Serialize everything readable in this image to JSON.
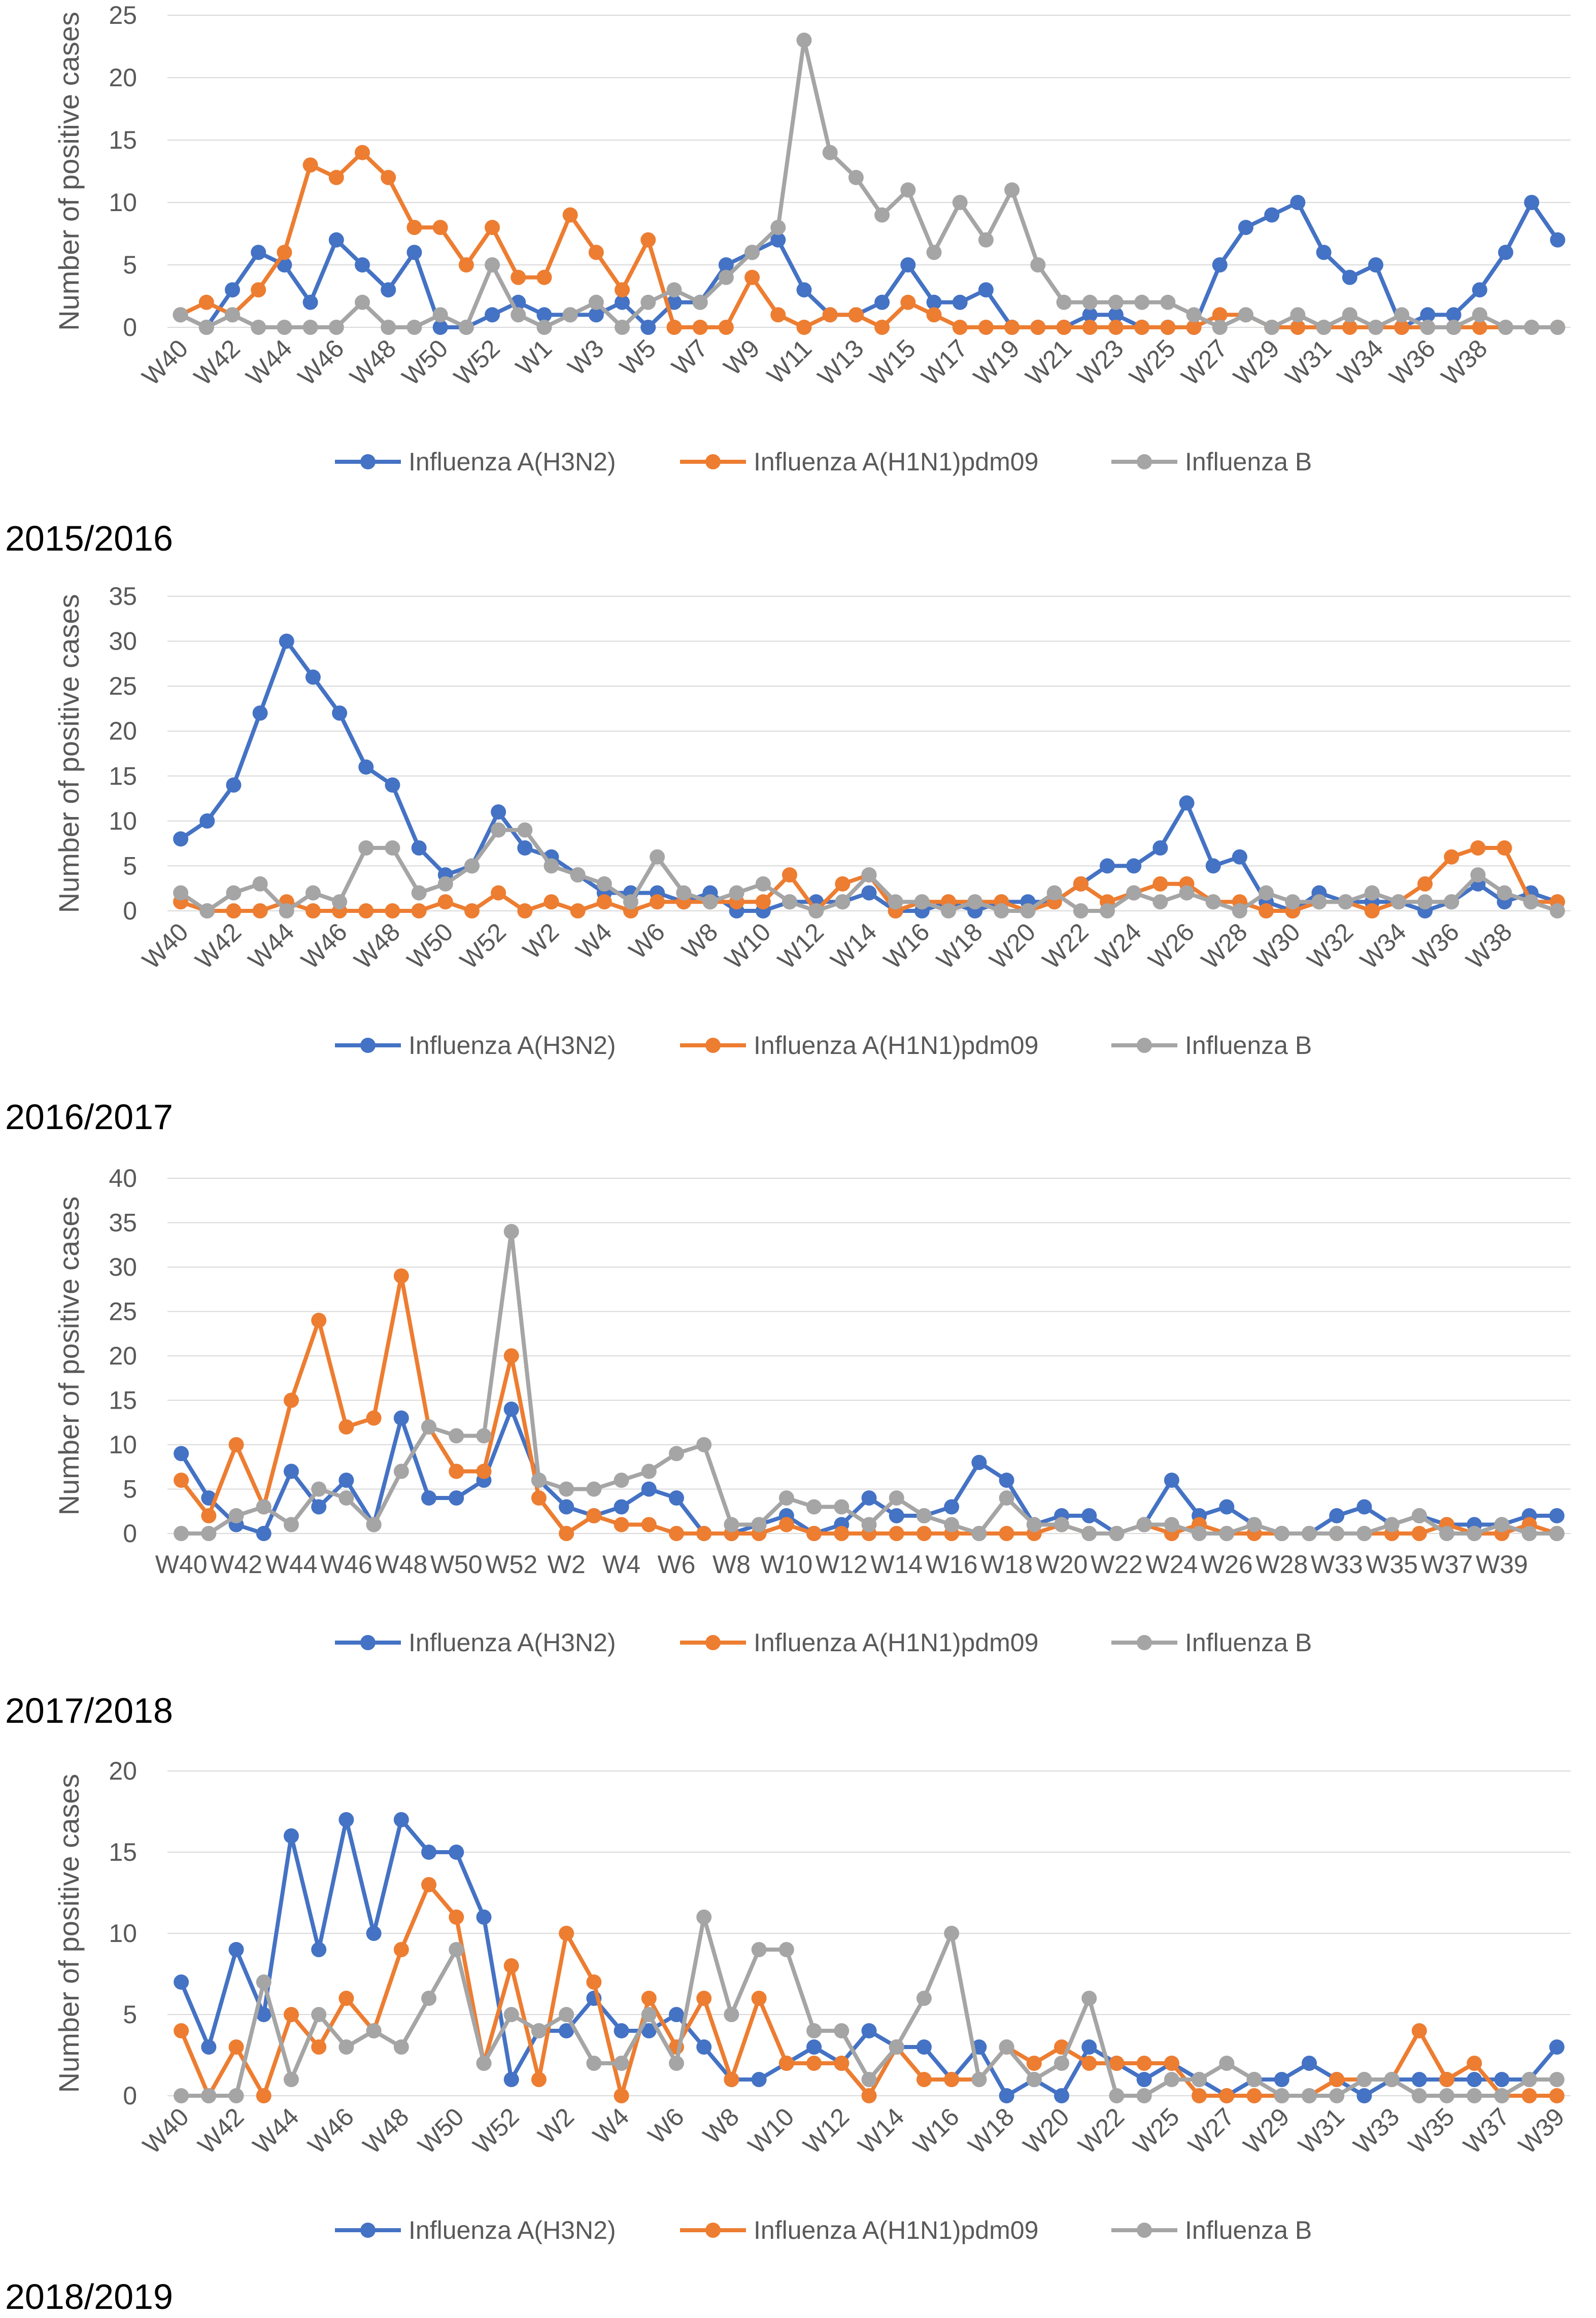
{
  "colors": {
    "h3n2": "#4472C4",
    "h1n1": "#ED7D31",
    "b": "#A5A5A5",
    "grid": "#D9D9D9",
    "text": "#595959"
  },
  "chart_data": [
    {
      "type": "line",
      "title": "",
      "ylabel": "Number of positive cases",
      "ylim": [
        0,
        25
      ],
      "ystep": 5,
      "grid": true,
      "legend": "bottom",
      "x_tick_labels": [
        "W40",
        "W42",
        "W44",
        "W46",
        "W48",
        "W50",
        "W52",
        "W1",
        "W3",
        "W5",
        "W7",
        "W9",
        "W11",
        "W13",
        "W15",
        "W17",
        "W19",
        "W21",
        "W23",
        "W25",
        "W27",
        "W29",
        "W31",
        "W34",
        "W36",
        "W38"
      ],
      "label_angle": 45,
      "series": [
        {
          "name": "Influenza A(H3N2)",
          "values": [
            1,
            0,
            3,
            6,
            5,
            2,
            7,
            5,
            3,
            6,
            0,
            0,
            1,
            2,
            1,
            1,
            1,
            2,
            0,
            2,
            2,
            5,
            6,
            7,
            3,
            1,
            1,
            2,
            5,
            2,
            2,
            3,
            0,
            0,
            0,
            1,
            1,
            0,
            0,
            0,
            5,
            8,
            9,
            10,
            6,
            4,
            5,
            0,
            1,
            1,
            3,
            6,
            10,
            7
          ]
        },
        {
          "name": "Influenza A(H1N1)pdm09",
          "values": [
            1,
            2,
            1,
            3,
            6,
            13,
            12,
            14,
            12,
            8,
            8,
            5,
            8,
            4,
            4,
            9,
            6,
            3,
            7,
            0,
            0,
            0,
            4,
            1,
            0,
            1,
            1,
            0,
            2,
            1,
            0,
            0,
            0,
            0,
            0,
            0,
            0,
            0,
            0,
            0,
            1,
            1,
            0,
            0,
            0,
            0,
            0,
            0,
            0,
            0,
            0,
            0,
            0,
            0
          ]
        },
        {
          "name": "Influenza B",
          "values": [
            1,
            0,
            1,
            0,
            0,
            0,
            0,
            2,
            0,
            0,
            1,
            0,
            5,
            1,
            0,
            1,
            2,
            0,
            2,
            3,
            2,
            4,
            6,
            8,
            23,
            14,
            12,
            9,
            11,
            6,
            10,
            7,
            11,
            5,
            2,
            2,
            2,
            2,
            2,
            1,
            0,
            1,
            0,
            1,
            0,
            1,
            0,
            1,
            0,
            0,
            1,
            0,
            0,
            0
          ]
        }
      ]
    },
    {
      "type": "line",
      "title": "2015/2016",
      "ylabel": "Number of positive cases",
      "ylim": [
        0,
        35
      ],
      "ystep": 5,
      "grid": true,
      "legend": "bottom",
      "x_tick_labels": [
        "W40",
        "W42",
        "W44",
        "W46",
        "W48",
        "W50",
        "W52",
        "W2",
        "W4",
        "W6",
        "W8",
        "W10",
        "W12",
        "W14",
        "W16",
        "W18",
        "W20",
        "W22",
        "W24",
        "W26",
        "W28",
        "W30",
        "W32",
        "W34",
        "W36",
        "W38"
      ],
      "label_angle": 45,
      "series": [
        {
          "name": "Influenza A(H3N2)",
          "values": [
            8,
            10,
            14,
            22,
            30,
            26,
            22,
            16,
            14,
            7,
            4,
            5,
            11,
            7,
            6,
            4,
            2,
            2,
            2,
            1,
            2,
            0,
            0,
            1,
            1,
            1,
            2,
            0,
            0,
            1,
            0,
            1,
            1,
            1,
            3,
            5,
            5,
            7,
            12,
            5,
            6,
            1,
            0,
            2,
            1,
            1,
            1,
            0,
            1,
            3,
            1,
            2,
            1
          ]
        },
        {
          "name": "Influenza A(H1N1)pdm09",
          "values": [
            1,
            0,
            0,
            0,
            1,
            0,
            0,
            0,
            0,
            0,
            1,
            0,
            2,
            0,
            1,
            0,
            1,
            0,
            1,
            1,
            1,
            1,
            1,
            4,
            0,
            3,
            4,
            0,
            1,
            1,
            1,
            1,
            0,
            1,
            3,
            1,
            2,
            3,
            3,
            1,
            1,
            0,
            0,
            1,
            1,
            0,
            1,
            3,
            6,
            7,
            7,
            1,
            1
          ]
        },
        {
          "name": "Influenza B",
          "values": [
            2,
            0,
            2,
            3,
            0,
            2,
            1,
            7,
            7,
            2,
            3,
            5,
            9,
            9,
            5,
            4,
            3,
            1,
            6,
            2,
            1,
            2,
            3,
            1,
            0,
            1,
            4,
            1,
            1,
            0,
            1,
            0,
            0,
            2,
            0,
            0,
            2,
            1,
            2,
            1,
            0,
            2,
            1,
            1,
            1,
            2,
            1,
            1,
            1,
            4,
            2,
            1,
            0
          ]
        }
      ]
    },
    {
      "type": "line",
      "title": "2016/2017",
      "ylabel": "Number of positive cases",
      "ylim": [
        0,
        40
      ],
      "ystep": 5,
      "grid": true,
      "legend": "bottom",
      "x_tick_labels": [
        "W40",
        "W42",
        "W44",
        "W46",
        "W48",
        "W50",
        "W52",
        "W2",
        "W4",
        "W6",
        "W8",
        "W10",
        "W12",
        "W14",
        "W16",
        "W18",
        "W20",
        "W22",
        "W24",
        "W26",
        "W28",
        "W33",
        "W35",
        "W37",
        "W39"
      ],
      "label_angle": 0,
      "series": [
        {
          "name": "Influenza A(H3N2)",
          "values": [
            9,
            4,
            1,
            0,
            7,
            3,
            6,
            1,
            13,
            4,
            4,
            6,
            14,
            6,
            3,
            2,
            3,
            5,
            4,
            0,
            0,
            1,
            2,
            0,
            1,
            4,
            2,
            2,
            3,
            8,
            6,
            1,
            2,
            2,
            0,
            1,
            6,
            2,
            3,
            1,
            0,
            0,
            2,
            3,
            1,
            2,
            1,
            1,
            1,
            2,
            2
          ]
        },
        {
          "name": "Influenza A(H1N1)pdm09",
          "values": [
            6,
            2,
            10,
            3,
            15,
            24,
            12,
            13,
            29,
            12,
            7,
            7,
            20,
            4,
            0,
            2,
            1,
            1,
            0,
            0,
            0,
            0,
            1,
            0,
            0,
            0,
            0,
            0,
            0,
            0,
            0,
            0,
            1,
            0,
            0,
            1,
            0,
            1,
            0,
            0,
            0,
            0,
            0,
            0,
            0,
            0,
            1,
            0,
            0,
            1,
            0
          ]
        },
        {
          "name": "Influenza B",
          "values": [
            0,
            0,
            2,
            3,
            1,
            5,
            4,
            1,
            7,
            12,
            11,
            11,
            34,
            6,
            5,
            5,
            6,
            7,
            9,
            10,
            1,
            1,
            4,
            3,
            3,
            1,
            4,
            2,
            1,
            0,
            4,
            1,
            1,
            0,
            0,
            1,
            1,
            0,
            0,
            1,
            0,
            0,
            0,
            0,
            1,
            2,
            0,
            0,
            1,
            0,
            0
          ]
        }
      ]
    },
    {
      "type": "line",
      "title": "2017/2018",
      "ylabel": "Number of positive cases",
      "ylim": [
        0,
        20
      ],
      "ystep": 5,
      "grid": true,
      "legend": "bottom",
      "x_tick_labels": [
        "W40",
        "W42",
        "W44",
        "W46",
        "W48",
        "W50",
        "W52",
        "W2",
        "W4",
        "W6",
        "W8",
        "W10",
        "W12",
        "W14",
        "W16",
        "W18",
        "W20",
        "W22",
        "W25",
        "W27",
        "W29",
        "W31",
        "W33",
        "W35",
        "W37",
        "W39"
      ],
      "label_angle": 45,
      "series": [
        {
          "name": "Influenza A(H3N2)",
          "values": [
            7,
            3,
            9,
            5,
            16,
            9,
            17,
            10,
            17,
            15,
            15,
            11,
            1,
            4,
            4,
            6,
            4,
            4,
            5,
            3,
            1,
            1,
            2,
            3,
            2,
            4,
            3,
            3,
            1,
            3,
            0,
            1,
            0,
            3,
            2,
            1,
            2,
            1,
            0,
            1,
            1,
            2,
            1,
            0,
            1,
            1,
            1,
            1,
            1,
            1,
            3
          ]
        },
        {
          "name": "Influenza A(H1N1)pdm09",
          "values": [
            4,
            0,
            3,
            0,
            5,
            3,
            6,
            4,
            9,
            13,
            11,
            2,
            8,
            1,
            10,
            7,
            0,
            6,
            3,
            6,
            1,
            6,
            2,
            2,
            2,
            0,
            3,
            1,
            1,
            1,
            3,
            2,
            3,
            2,
            2,
            2,
            2,
            0,
            0,
            0,
            0,
            0,
            1,
            1,
            1,
            4,
            1,
            2,
            0,
            0,
            0
          ]
        },
        {
          "name": "Influenza B",
          "values": [
            0,
            0,
            0,
            7,
            1,
            5,
            3,
            4,
            3,
            6,
            9,
            2,
            5,
            4,
            5,
            2,
            2,
            5,
            2,
            11,
            5,
            9,
            9,
            4,
            4,
            1,
            3,
            6,
            10,
            1,
            3,
            1,
            2,
            6,
            0,
            0,
            1,
            1,
            2,
            1,
            0,
            0,
            0,
            1,
            1,
            0,
            0,
            0,
            0,
            1,
            1
          ]
        }
      ]
    }
  ],
  "after_caption": "2018/2019"
}
